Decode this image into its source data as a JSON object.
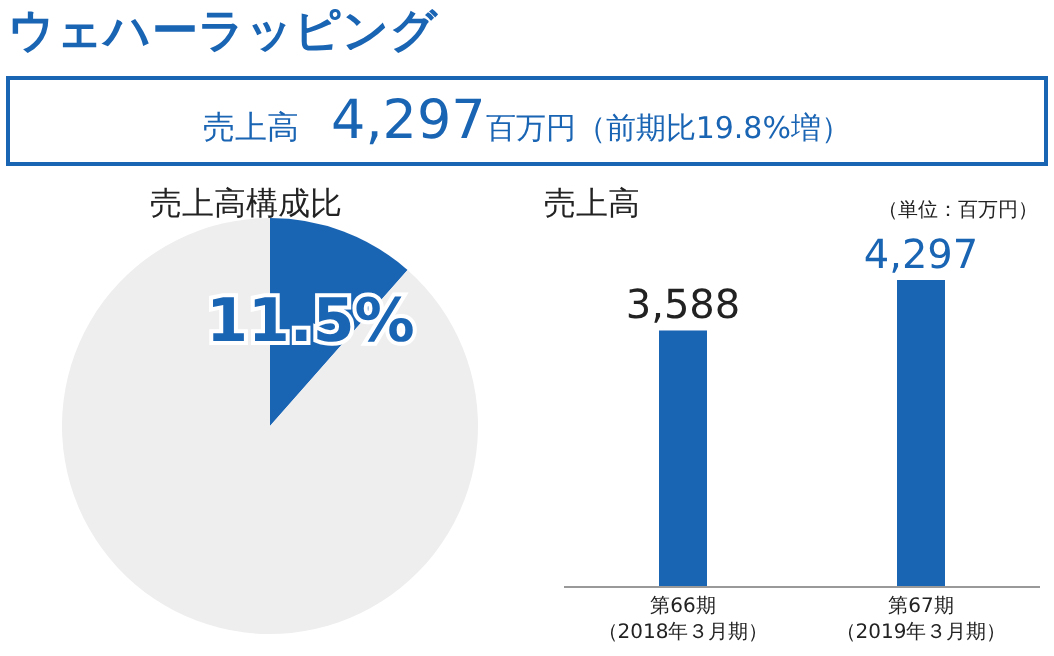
{
  "chart_data": [
    {
      "type": "other",
      "title": "ウェハーラッピング",
      "annotations": [
        "売上高",
        "4,297",
        "百万円（前期比19.8%増）"
      ],
      "color": "#1a64b4"
    },
    {
      "type": "pie",
      "title": "売上高構成比",
      "categories": [
        null,
        null
      ],
      "values": [
        11.5,
        88.5
      ],
      "colors": [
        "#1a64b4",
        "#eeeeee"
      ],
      "value_labels": [
        "11.5%",
        null
      ]
    },
    {
      "type": "bar",
      "title": "売上高",
      "annotations": [
        "（単位：百万円）"
      ],
      "categories": [
        "第66期（2018年３月期）",
        "第67期（2019年３月期）"
      ],
      "values": [
        3588,
        4297
      ],
      "color": "#1a64b4",
      "value_labels": [
        "3,588",
        "4,297"
      ]
    }
  ]
}
